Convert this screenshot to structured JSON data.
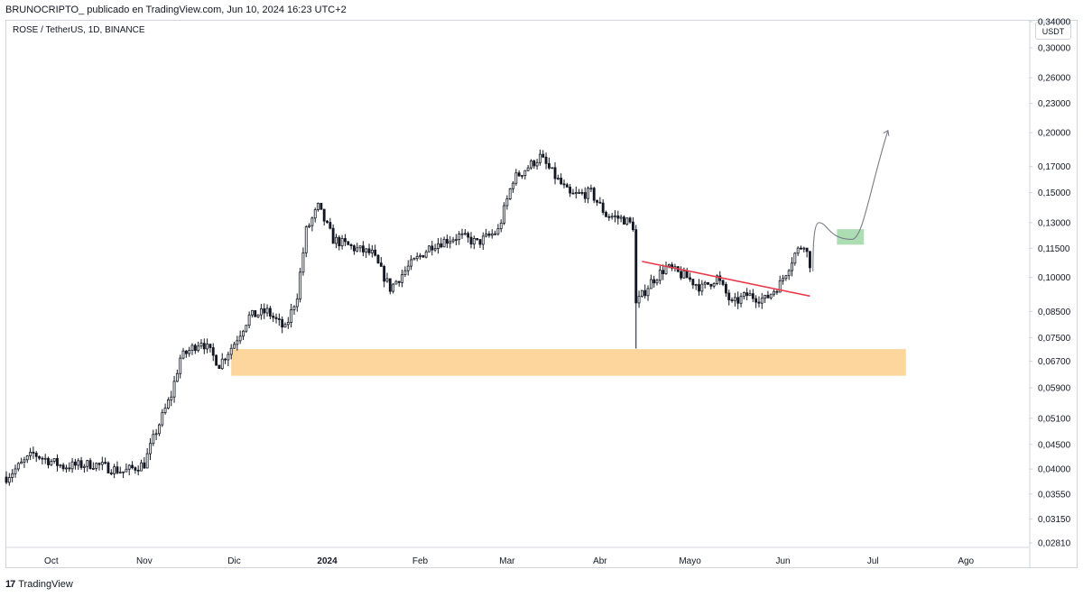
{
  "header": {
    "publisher_line": "BRUNOCRIPTO_ publicado en TradingView.com, Jun 10, 2024 16:23 UTC+2"
  },
  "symbol": {
    "title": "ROSE / TetherUS, 1D, BINANCE"
  },
  "price_axis": {
    "currency": "USDT"
  },
  "footer": {
    "brand_logo": "17",
    "brand_name": "TradingView"
  },
  "colors": {
    "candle": "#131722",
    "support_zone": "#fcd69d",
    "target_box": "#9fd8a6",
    "trendline": "#e8394a",
    "projection": "#787b86"
  },
  "chart_data": {
    "type": "candlestick",
    "title": "ROSE / TetherUS, 1D, BINANCE",
    "scale": "log",
    "ylim": [
      0.0281,
      0.34
    ],
    "y_ticks": [
      "0,34000",
      "0,30000",
      "0,26000",
      "0,23000",
      "0,20000",
      "0,17000",
      "0,15000",
      "0,13000",
      "0,11500",
      "0,10000",
      "0,08500",
      "0,07500",
      "0,06700",
      "0,05900",
      "0,05100",
      "0,04500",
      "0,04000",
      "0,03550",
      "0,03150",
      "0,02810"
    ],
    "x_ticks": [
      "Oct",
      "Nov",
      "Dic",
      "2024",
      "Feb",
      "Mar",
      "Abr",
      "Mayo",
      "Jun",
      "Jul",
      "Ago"
    ],
    "x_range": [
      "2023-09-16",
      "2024-08-22"
    ],
    "last_candle": "2024-06-10",
    "series": [
      {
        "name": "",
        "points": [
          [
            "2023-09-16",
            0.0385
          ],
          [
            "2023-09-25",
            0.043
          ],
          [
            "2023-10-05",
            0.0405
          ],
          [
            "2023-10-15",
            0.041
          ],
          [
            "2023-10-25",
            0.0395
          ],
          [
            "2023-11-01",
            0.041
          ],
          [
            "2023-11-05",
            0.048
          ],
          [
            "2023-11-10",
            0.057
          ],
          [
            "2023-11-13",
            0.068
          ],
          [
            "2023-11-20",
            0.074
          ],
          [
            "2023-11-26",
            0.066
          ],
          [
            "2023-12-01",
            0.073
          ],
          [
            "2023-12-06",
            0.083
          ],
          [
            "2023-12-12",
            0.085
          ],
          [
            "2023-12-18",
            0.078
          ],
          [
            "2023-12-22",
            0.092
          ],
          [
            "2023-12-25",
            0.125
          ],
          [
            "2023-12-29",
            0.14
          ],
          [
            "2024-01-03",
            0.12
          ],
          [
            "2024-01-10",
            0.115
          ],
          [
            "2024-01-16",
            0.112
          ],
          [
            "2024-01-22",
            0.095
          ],
          [
            "2024-01-28",
            0.105
          ],
          [
            "2024-02-05",
            0.117
          ],
          [
            "2024-02-14",
            0.122
          ],
          [
            "2024-02-20",
            0.118
          ],
          [
            "2024-02-27",
            0.125
          ],
          [
            "2024-03-03",
            0.16
          ],
          [
            "2024-03-12",
            0.178
          ],
          [
            "2024-03-17",
            0.162
          ],
          [
            "2024-03-22",
            0.148
          ],
          [
            "2024-03-29",
            0.15
          ],
          [
            "2024-04-03",
            0.135
          ],
          [
            "2024-04-09",
            0.132
          ],
          [
            "2024-04-12",
            0.128
          ],
          [
            "2024-04-13",
            0.088
          ],
          [
            "2024-04-18",
            0.098
          ],
          [
            "2024-04-23",
            0.105
          ],
          [
            "2024-04-30",
            0.1
          ],
          [
            "2024-05-05",
            0.095
          ],
          [
            "2024-05-10",
            0.1
          ],
          [
            "2024-05-15",
            0.088
          ],
          [
            "2024-05-20",
            0.092
          ],
          [
            "2024-05-26",
            0.09
          ],
          [
            "2024-05-31",
            0.097
          ],
          [
            "2024-06-05",
            0.112
          ],
          [
            "2024-06-08",
            0.118
          ],
          [
            "2024-06-10",
            0.107
          ]
        ]
      }
    ],
    "support_zone": {
      "x": [
        "2023-11-30",
        "2024-07-12"
      ],
      "y": [
        0.0625,
        0.071
      ]
    },
    "trendline": {
      "x": [
        "2024-04-15",
        "2024-06-10"
      ],
      "y": [
        0.108,
        0.0915
      ]
    },
    "target_box": {
      "x": [
        "2024-06-19",
        "2024-06-28"
      ],
      "y": [
        0.117,
        0.126
      ]
    },
    "projection": [
      [
        "2024-06-11",
        0.103
      ],
      [
        "2024-06-13",
        0.13
      ],
      [
        "2024-06-18",
        0.123
      ],
      [
        "2024-06-24",
        0.12
      ],
      [
        "2024-07-01",
        0.165
      ],
      [
        "2024-07-06",
        0.202
      ]
    ]
  }
}
